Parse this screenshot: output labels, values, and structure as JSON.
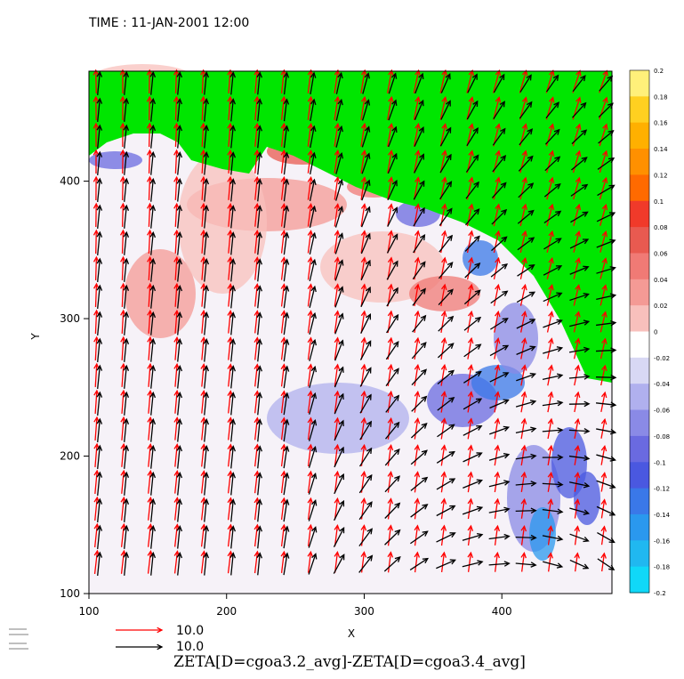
{
  "chart_data": {
    "type": "heatmap",
    "header": "TIME : 11-JAN-2001 12:00",
    "title": "ZETA[D=cgoa3.2_avg]-ZETA[D=cgoa3.4_avg]",
    "xlabel": "X",
    "ylabel": "Y",
    "xlim": [
      100,
      480
    ],
    "ylim": [
      100,
      480
    ],
    "x_ticks": [
      "100",
      "200",
      "300",
      "400"
    ],
    "x_tick_values": [
      100,
      200,
      300,
      400
    ],
    "y_ticks": [
      "100",
      "200",
      "300",
      "400"
    ],
    "y_tick_values": [
      100,
      200,
      300,
      400
    ],
    "grid": false,
    "colorbar": {
      "min": -0.2,
      "max": 0.2,
      "labels": [
        "0.2",
        "0.18",
        "0.16",
        "0.14",
        "0.12",
        "0.1",
        "0.08",
        "0.06",
        "0.04",
        "0.02",
        "0",
        "-0.02",
        "-0.04",
        "-0.06",
        "-0.08",
        "-0.1",
        "-0.12",
        "-0.14",
        "-0.16",
        "-0.18",
        "-0.2"
      ],
      "colors": [
        "#fff07a",
        "#ffd020",
        "#ffb000",
        "#ff9000",
        "#ff6a00",
        "#f03a2a",
        "#e85a50",
        "#f07a75",
        "#f49a95",
        "#f8c0bc",
        "#ffffff",
        "#d8d8f4",
        "#b0b0ee",
        "#8a8ae6",
        "#6a6ae0",
        "#4a58e0",
        "#3a78e8",
        "#2a98ee",
        "#20b8f0",
        "#10d8f8"
      ],
      "placement": "right"
    },
    "land_color": "#00e600",
    "vectors": [
      {
        "color": "#ff0000",
        "reference_value": "10.0"
      },
      {
        "color": "#000000",
        "reference_value": "10.0"
      }
    ]
  }
}
